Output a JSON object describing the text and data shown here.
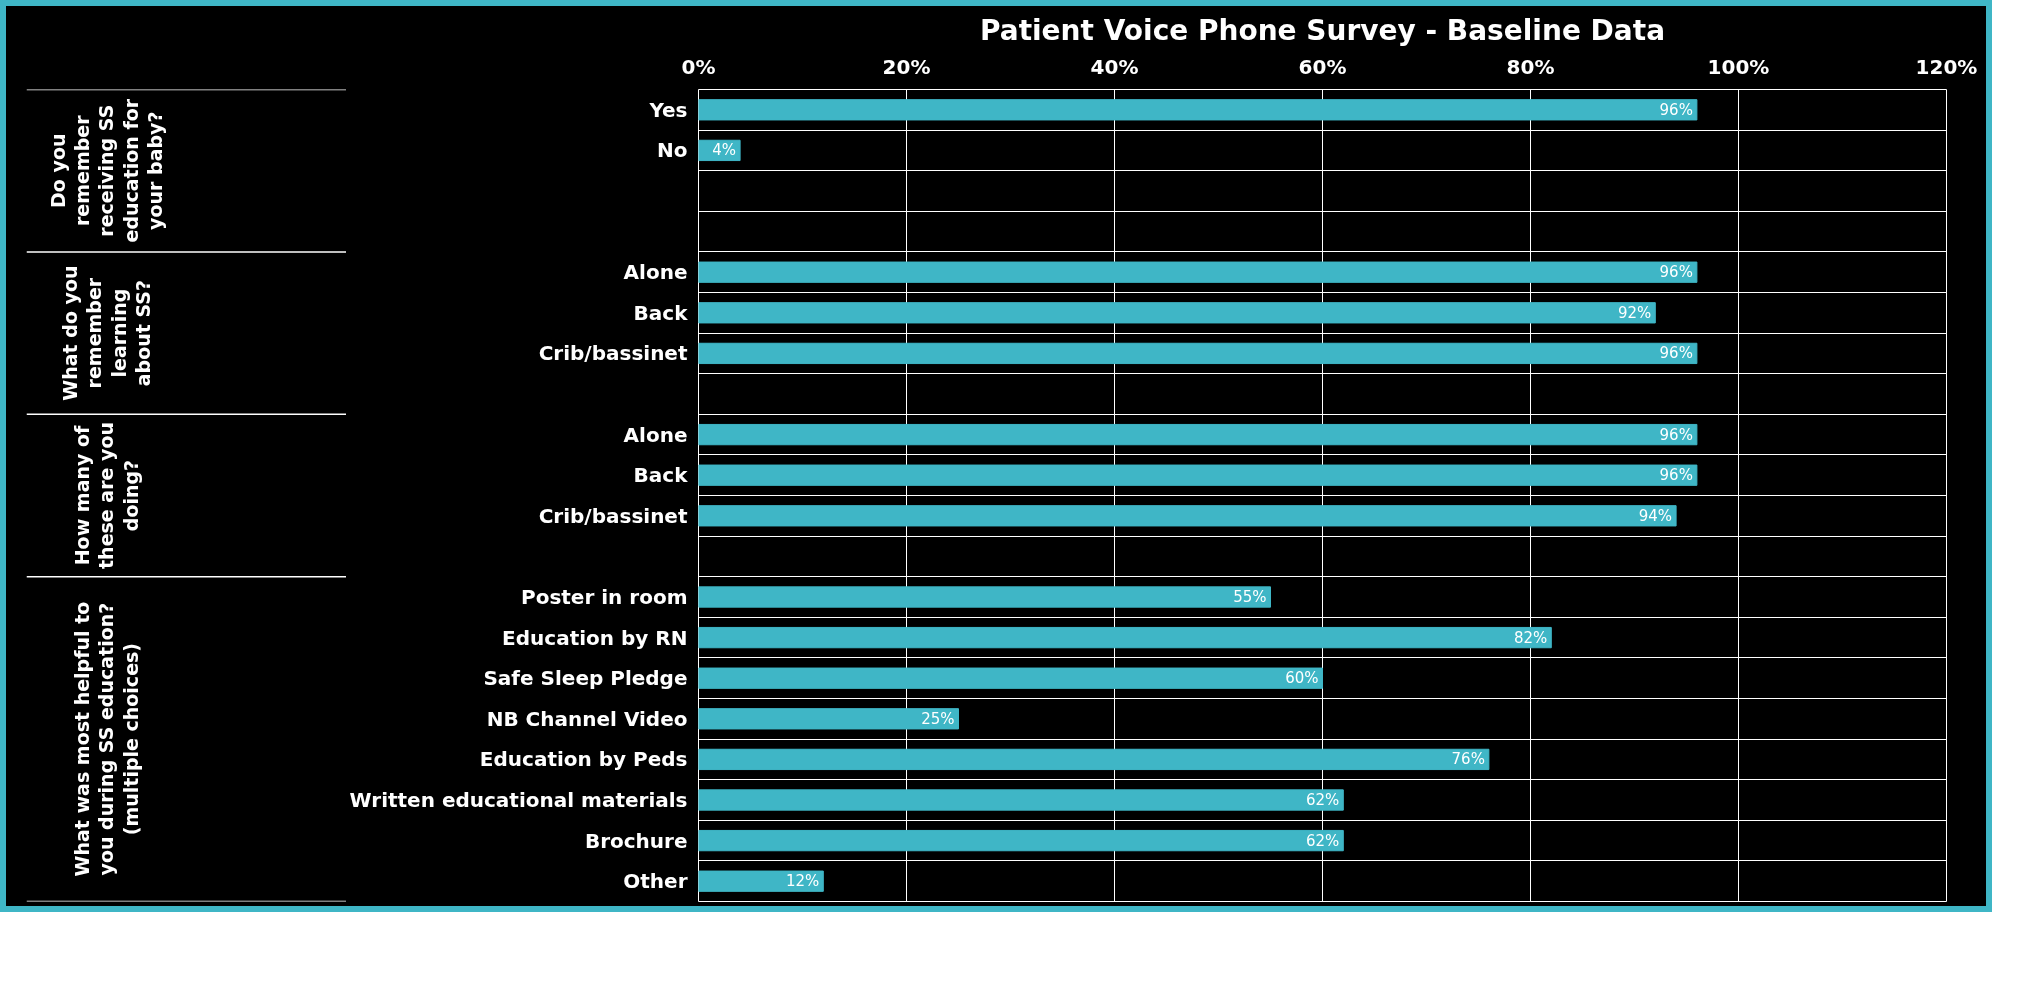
{
  "chart_data": {
    "type": "bar",
    "orientation": "horizontal",
    "title": "Patient Voice Phone Survey - Baseline Data",
    "categories": [
      "Yes",
      "No",
      null,
      null,
      "Alone",
      "Back",
      "Crib/bassinet",
      null,
      "Alone",
      "Back",
      "Crib/bassinet",
      null,
      "Poster in room",
      "Education by RN",
      "Safe Sleep Pledge",
      "NB Channel Video",
      "Education by Peds",
      "Written educational materials",
      "Brochure",
      "Other"
    ],
    "values": [
      96,
      4,
      null,
      null,
      96,
      92,
      96,
      null,
      96,
      96,
      94,
      null,
      55,
      82,
      60,
      25,
      76,
      62,
      62,
      12
    ],
    "value_labels": [
      "96%",
      "4%",
      null,
      null,
      "96%",
      "92%",
      "96%",
      null,
      "96%",
      "96%",
      "94%",
      null,
      "55%",
      "82%",
      "60%",
      "25%",
      "76%",
      "62%",
      "62%",
      "12%"
    ],
    "color": "#3fb6c6",
    "xlim": [
      0,
      120
    ],
    "xticks": [
      {
        "value": 0,
        "label": "0%"
      },
      {
        "value": 20,
        "label": "20%"
      },
      {
        "value": 40,
        "label": "40%"
      },
      {
        "value": 60,
        "label": "60%"
      },
      {
        "value": 80,
        "label": "80%"
      },
      {
        "value": 100,
        "label": "100%"
      },
      {
        "value": 120,
        "label": "120%"
      }
    ],
    "grid": true,
    "annotations": [
      "Do you remember receiving SS education for your baby?",
      "What do you remember learning about SS?",
      "How many of these are you doing?",
      "What was most helpful to you during SS education? (multiple choices)"
    ]
  }
}
